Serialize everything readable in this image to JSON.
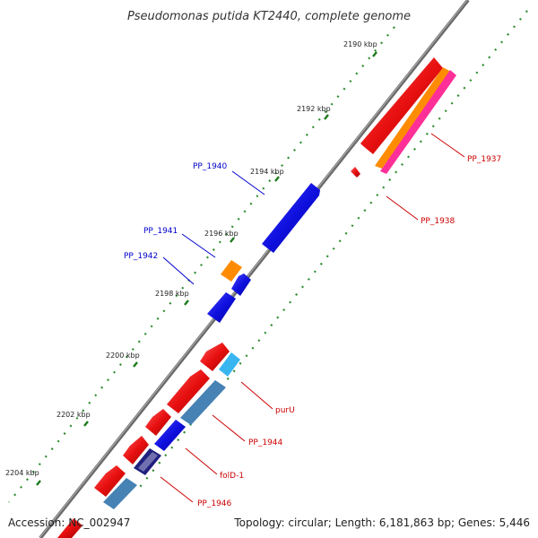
{
  "title": "Pseudomonas putida KT2440, complete genome",
  "footer": {
    "accession": "Accession: NC_002947",
    "summary": "Topology: circular; Length: 6,181,863 bp; Genes: 5,446"
  },
  "tick_labels": [
    "2190 kbp",
    "2192 kbp",
    "2194 kbp",
    "2196 kbp",
    "2198 kbp",
    "2200 kbp",
    "2202 kbp",
    "2204 kbp"
  ],
  "gene_labels": {
    "pp1937": "PP_1937",
    "pp1938": "PP_1938",
    "pp1940": "PP_1940",
    "pp1941": "PP_1941",
    "pp1942": "PP_1942",
    "purU": "purU",
    "pp1944": "PP_1944",
    "folD1": "folD-1",
    "pp1946": "PP_1946"
  },
  "colors": {
    "backbone": "#7a7a7a",
    "tick": "#2e8b2e",
    "forward_gene": "#e01010",
    "reverse_gene": "#1010e0",
    "orange_feature": "#ff8c00",
    "pink_feature": "#ff3fa0",
    "light_blue_feature": "#3fb8f0",
    "steel_blue_feature": "#4682b4",
    "navy_feature": "#1a1a80",
    "label_red": "#cc0000",
    "label_blue": "#0000cc"
  }
}
